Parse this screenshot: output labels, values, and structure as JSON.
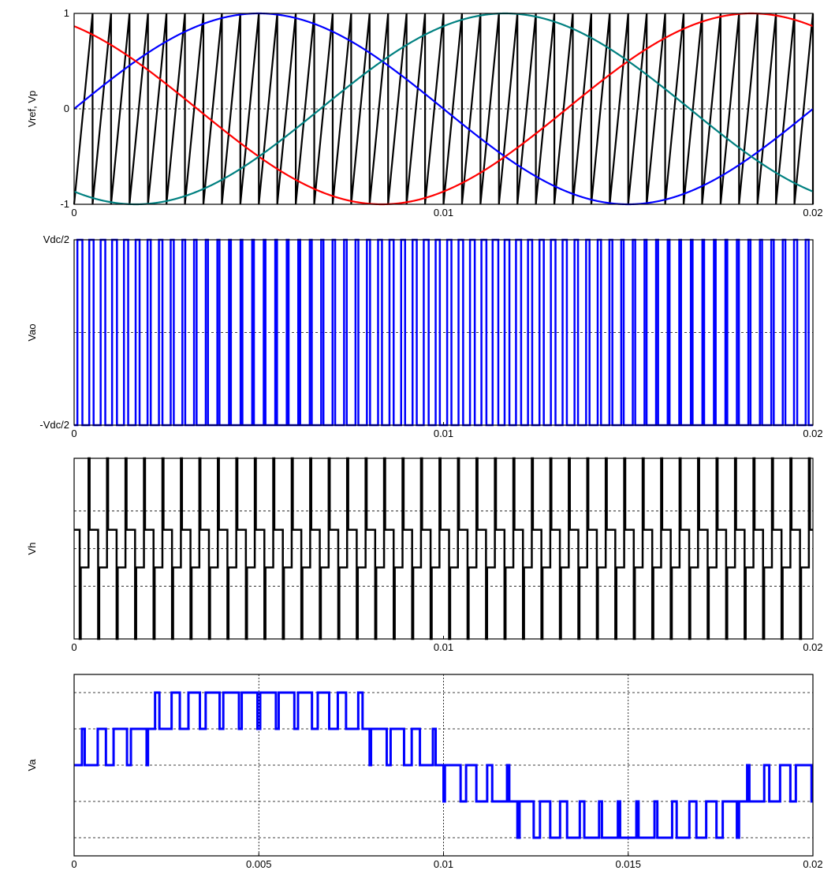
{
  "chart_data": [
    {
      "type": "line",
      "ylabel": "Vref, Vp",
      "xlim": [
        0,
        0.02
      ],
      "ylim": [
        -1,
        1
      ],
      "xticks": [
        {
          "v": 0,
          "label": "0"
        },
        {
          "v": 0.01,
          "label": "0.01"
        },
        {
          "v": 0.02,
          "label": "0.02"
        }
      ],
      "yticks": [
        {
          "v": 1,
          "label": "1"
        },
        {
          "v": 0,
          "label": "0"
        },
        {
          "v": -1,
          "label": "-1"
        }
      ],
      "grid": "y-dashed at 0",
      "carrier": {
        "type": "sawtooth",
        "frequency_hz": 2000,
        "min": -1,
        "max": 1,
        "color": "#000000"
      },
      "series": [
        {
          "amplitude": 1,
          "frequency_hz": 50,
          "phase_deg": 0,
          "color": "#0000ff"
        },
        {
          "amplitude": 1,
          "frequency_hz": 50,
          "phase_deg": 120,
          "color": "#ff0000"
        },
        {
          "amplitude": 1,
          "frequency_hz": 50,
          "phase_deg": -120,
          "color": "#008080"
        }
      ]
    },
    {
      "type": "line",
      "ylabel": "Vao",
      "xlim": [
        0,
        0.02
      ],
      "ylim": [
        -1,
        1
      ],
      "xticks": [
        {
          "v": 0,
          "label": "0"
        },
        {
          "v": 0.01,
          "label": "0.01"
        },
        {
          "v": 0.02,
          "label": "0.02"
        }
      ],
      "yticks": [
        {
          "v": 1,
          "label": "Vdc/2"
        },
        {
          "v": -1,
          "label": "-Vdc/2"
        }
      ],
      "grid": "y-dashed at 0",
      "series": [
        {
          "kind": "two-level PWM",
          "levels": [
            -1,
            1
          ],
          "pulse_count": 64,
          "color": "#0000ff"
        }
      ]
    },
    {
      "type": "line",
      "ylabel": "Vh",
      "xlim": [
        0,
        0.02
      ],
      "ylim": [
        -2.4,
        2.4
      ],
      "xticks": [
        {
          "v": 0,
          "label": "0"
        },
        {
          "v": 0.01,
          "label": "0.01"
        },
        {
          "v": 0.02,
          "label": "0.02"
        }
      ],
      "yticks": [],
      "grid": "y-dashed at -1, 0, 1",
      "series": [
        {
          "kind": "multilevel switching",
          "levels": [
            -2.4,
            -0.5,
            0.5,
            2.4
          ],
          "pulse_count": 40,
          "color": "#000000"
        }
      ]
    },
    {
      "type": "line",
      "ylabel": "Va",
      "xlim": [
        0,
        0.02
      ],
      "ylim": [
        -2.5,
        2.5
      ],
      "xticks": [
        {
          "v": 0,
          "label": "0"
        },
        {
          "v": 0.005,
          "label": "0.005"
        },
        {
          "v": 0.01,
          "label": "0.01"
        },
        {
          "v": 0.015,
          "label": "0.015"
        },
        {
          "v": 0.02,
          "label": "0.02"
        }
      ],
      "yticks": [],
      "grid": "full dotted",
      "series": [
        {
          "kind": "five-level staircase PWM",
          "levels": [
            -2,
            -1,
            0,
            1,
            2
          ],
          "pulse_count": 40,
          "color": "#0000ff"
        }
      ]
    }
  ]
}
